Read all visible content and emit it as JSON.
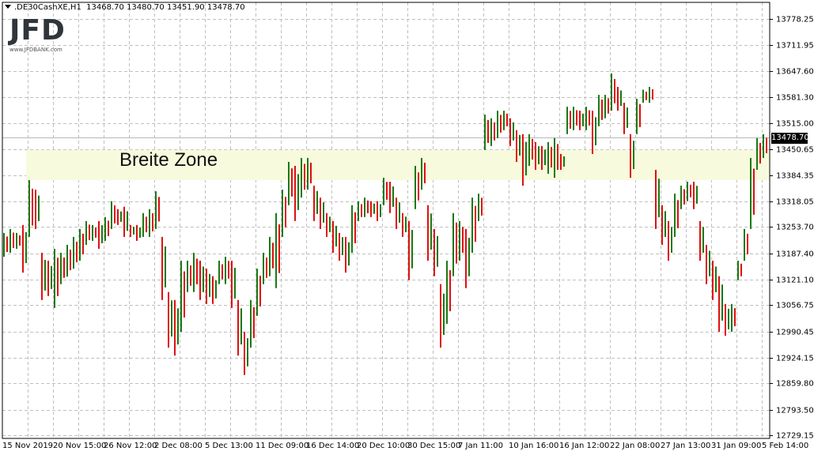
{
  "header": {
    "symbol": ".DE30CashXE,H1",
    "ohlc": "13468.70 13480.70 13451.90 13478.70"
  },
  "logo": {
    "text": "JFD",
    "url": "www.JFDBANK.com"
  },
  "colors": {
    "up": "#1a7a14",
    "down": "#e01010",
    "zone": "#f7fadc",
    "grid": "#c0c0c0",
    "price_line": "#b8b8b8"
  },
  "chart_data": {
    "type": "bar",
    "subtype": "high-low price bars (OHLC)",
    "title": "",
    "grid": true,
    "ylim": [
      12729.15,
      13778.25
    ],
    "y_ticks": [
      "13778.25",
      "13711.95",
      "13647.60",
      "13581.30",
      "13515.00",
      "13450.65",
      "13384.35",
      "13318.05",
      "13253.70",
      "13187.40",
      "13121.10",
      "13056.75",
      "12990.45",
      "12924.15",
      "12859.80",
      "12793.50",
      "12729.15"
    ],
    "x_ticks": [
      "15 Nov 2019",
      "20 Nov 15:00",
      "26 Nov 12:00",
      "2 Dec 08:00",
      "5 Dec 13:00",
      "11 Dec 09:00",
      "16 Dec 14:00",
      "20 Dec 10:00",
      "30 Dec 15:00",
      "7 Jan 11:00",
      "10 Jan 16:00",
      "16 Jan 12:00",
      "22 Jan 08:00",
      "27 Jan 13:00",
      "31 Jan 09:00",
      "5 Feb 14:00"
    ],
    "current_price": "13478.70",
    "zone": {
      "label": "Breite Zone",
      "from": 13372,
      "to": 13448
    },
    "bars_high_low": [
      [
        13239,
        13179
      ],
      [
        13249,
        13189
      ],
      [
        13239,
        13199
      ],
      [
        13259,
        13139
      ],
      [
        13372,
        13229
      ],
      [
        13348,
        13249
      ],
      [
        13189,
        13070
      ],
      [
        13169,
        13080
      ],
      [
        13199,
        13050
      ],
      [
        13189,
        13110
      ],
      [
        13209,
        13129
      ],
      [
        13229,
        13149
      ],
      [
        13249,
        13169
      ],
      [
        13269,
        13209
      ],
      [
        13259,
        13219
      ],
      [
        13269,
        13199
      ],
      [
        13279,
        13219
      ],
      [
        13319,
        13249
      ],
      [
        13299,
        13259
      ],
      [
        13305,
        13229
      ],
      [
        13259,
        13229
      ],
      [
        13259,
        13219
      ],
      [
        13289,
        13229
      ],
      [
        13299,
        13229
      ],
      [
        13344,
        13249
      ],
      [
        13229,
        13070
      ],
      [
        13090,
        12950
      ],
      [
        13070,
        12930
      ],
      [
        13169,
        12990
      ],
      [
        13169,
        13090
      ],
      [
        13189,
        13090
      ],
      [
        13169,
        13070
      ],
      [
        13149,
        13060
      ],
      [
        13130,
        13060
      ],
      [
        13169,
        13110
      ],
      [
        13179,
        13110
      ],
      [
        13169,
        13050
      ],
      [
        13070,
        12930
      ],
      [
        12990,
        12881
      ],
      [
        13070,
        12950
      ],
      [
        13149,
        13030
      ],
      [
        13189,
        13110
      ],
      [
        13229,
        13130
      ],
      [
        13289,
        13100
      ],
      [
        13348,
        13229
      ],
      [
        13418,
        13309
      ],
      [
        13408,
        13269
      ],
      [
        13428,
        13328
      ],
      [
        13428,
        13348
      ],
      [
        13358,
        13269
      ],
      [
        13328,
        13249
      ],
      [
        13289,
        13229
      ],
      [
        13269,
        13189
      ],
      [
        13239,
        13169
      ],
      [
        13229,
        13139
      ],
      [
        13309,
        13189
      ],
      [
        13319,
        13269
      ],
      [
        13328,
        13279
      ],
      [
        13319,
        13279
      ],
      [
        13319,
        13269
      ],
      [
        13378,
        13309
      ],
      [
        13368,
        13289
      ],
      [
        13328,
        13249
      ],
      [
        13289,
        13229
      ],
      [
        13269,
        13120
      ],
      [
        13408,
        13299
      ],
      [
        13428,
        13348
      ],
      [
        13309,
        13169
      ],
      [
        13249,
        13130
      ],
      [
        13110,
        12950
      ],
      [
        13169,
        13010
      ],
      [
        13289,
        13130
      ],
      [
        13269,
        13169
      ],
      [
        13249,
        13100
      ],
      [
        13328,
        13189
      ],
      [
        13338,
        13269
      ],
      [
        13537,
        13448
      ],
      [
        13528,
        13458
      ],
      [
        13547,
        13478
      ],
      [
        13547,
        13498
      ],
      [
        13528,
        13458
      ],
      [
        13498,
        13418
      ],
      [
        13488,
        13358
      ],
      [
        13488,
        13408
      ],
      [
        13468,
        13398
      ],
      [
        13458,
        13398
      ],
      [
        13468,
        13388
      ],
      [
        13478,
        13378
      ],
      [
        13438,
        13398
      ],
      [
        13557,
        13488
      ],
      [
        13557,
        13498
      ],
      [
        13547,
        13498
      ],
      [
        13557,
        13498
      ],
      [
        13547,
        13438
      ],
      [
        13587,
        13508
      ],
      [
        13587,
        13528
      ],
      [
        13641,
        13547
      ],
      [
        13607,
        13547
      ],
      [
        13567,
        13488
      ],
      [
        13488,
        13378
      ],
      [
        13577,
        13488
      ],
      [
        13600,
        13567
      ],
      [
        13607,
        13567
      ],
      [
        13398,
        13249
      ],
      [
        13309,
        13209
      ],
      [
        13269,
        13169
      ],
      [
        13338,
        13229
      ],
      [
        13358,
        13299
      ],
      [
        13368,
        13319
      ],
      [
        13368,
        13299
      ],
      [
        13269,
        13169
      ],
      [
        13209,
        13110
      ],
      [
        13169,
        13070
      ],
      [
        13130,
        12990
      ],
      [
        13060,
        12980
      ],
      [
        13060,
        12990
      ],
      [
        13169,
        13120
      ],
      [
        13249,
        13169
      ],
      [
        13428,
        13249
      ],
      [
        13478,
        13398
      ],
      [
        13488,
        13428
      ]
    ]
  }
}
